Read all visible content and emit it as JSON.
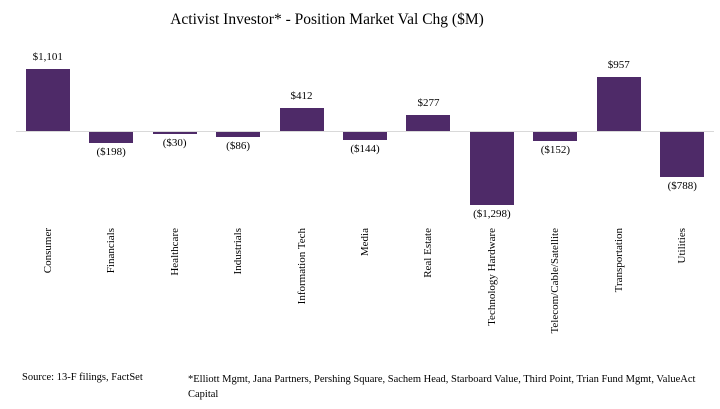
{
  "title": "Activist Investor* - Position Market Val Chg ($M)",
  "chart_data": {
    "type": "bar",
    "title": "Activist Investor* - Position Market Val Chg ($M)",
    "categories": [
      "Consumer",
      "Financials",
      "Healthcare",
      "Industrials",
      "Information Tech",
      "Media",
      "Real Estate",
      "Technology Hardware",
      "Telecom/Cable/Satellite",
      "Transportation",
      "Utilities"
    ],
    "values": [
      1101,
      -198,
      -30,
      -86,
      412,
      -144,
      277,
      -1298,
      -152,
      957,
      -788
    ],
    "value_labels": [
      "$1,101",
      "($198)",
      "($30)",
      "($86)",
      "$412",
      "($144)",
      "$277",
      "($1,298)",
      "($152)",
      "$957",
      "($788)"
    ],
    "xlabel": "",
    "ylabel": "",
    "ylim": [
      -1400,
      1200
    ],
    "grid": false,
    "legend": "none",
    "value_labels_shown": true,
    "bar_color": "#4e2a68",
    "axis_line_color": "#d9d9d9"
  },
  "footer": {
    "source": "Source: 13-F filings, FactSet",
    "footnote_lines": [
      "*Elliott Mgmt, Jana Partners, Pershing Square, Sachem Head, Starboard Value, Third Point, Trian Fund Mgmt, ValueAct",
      "Capital"
    ]
  }
}
